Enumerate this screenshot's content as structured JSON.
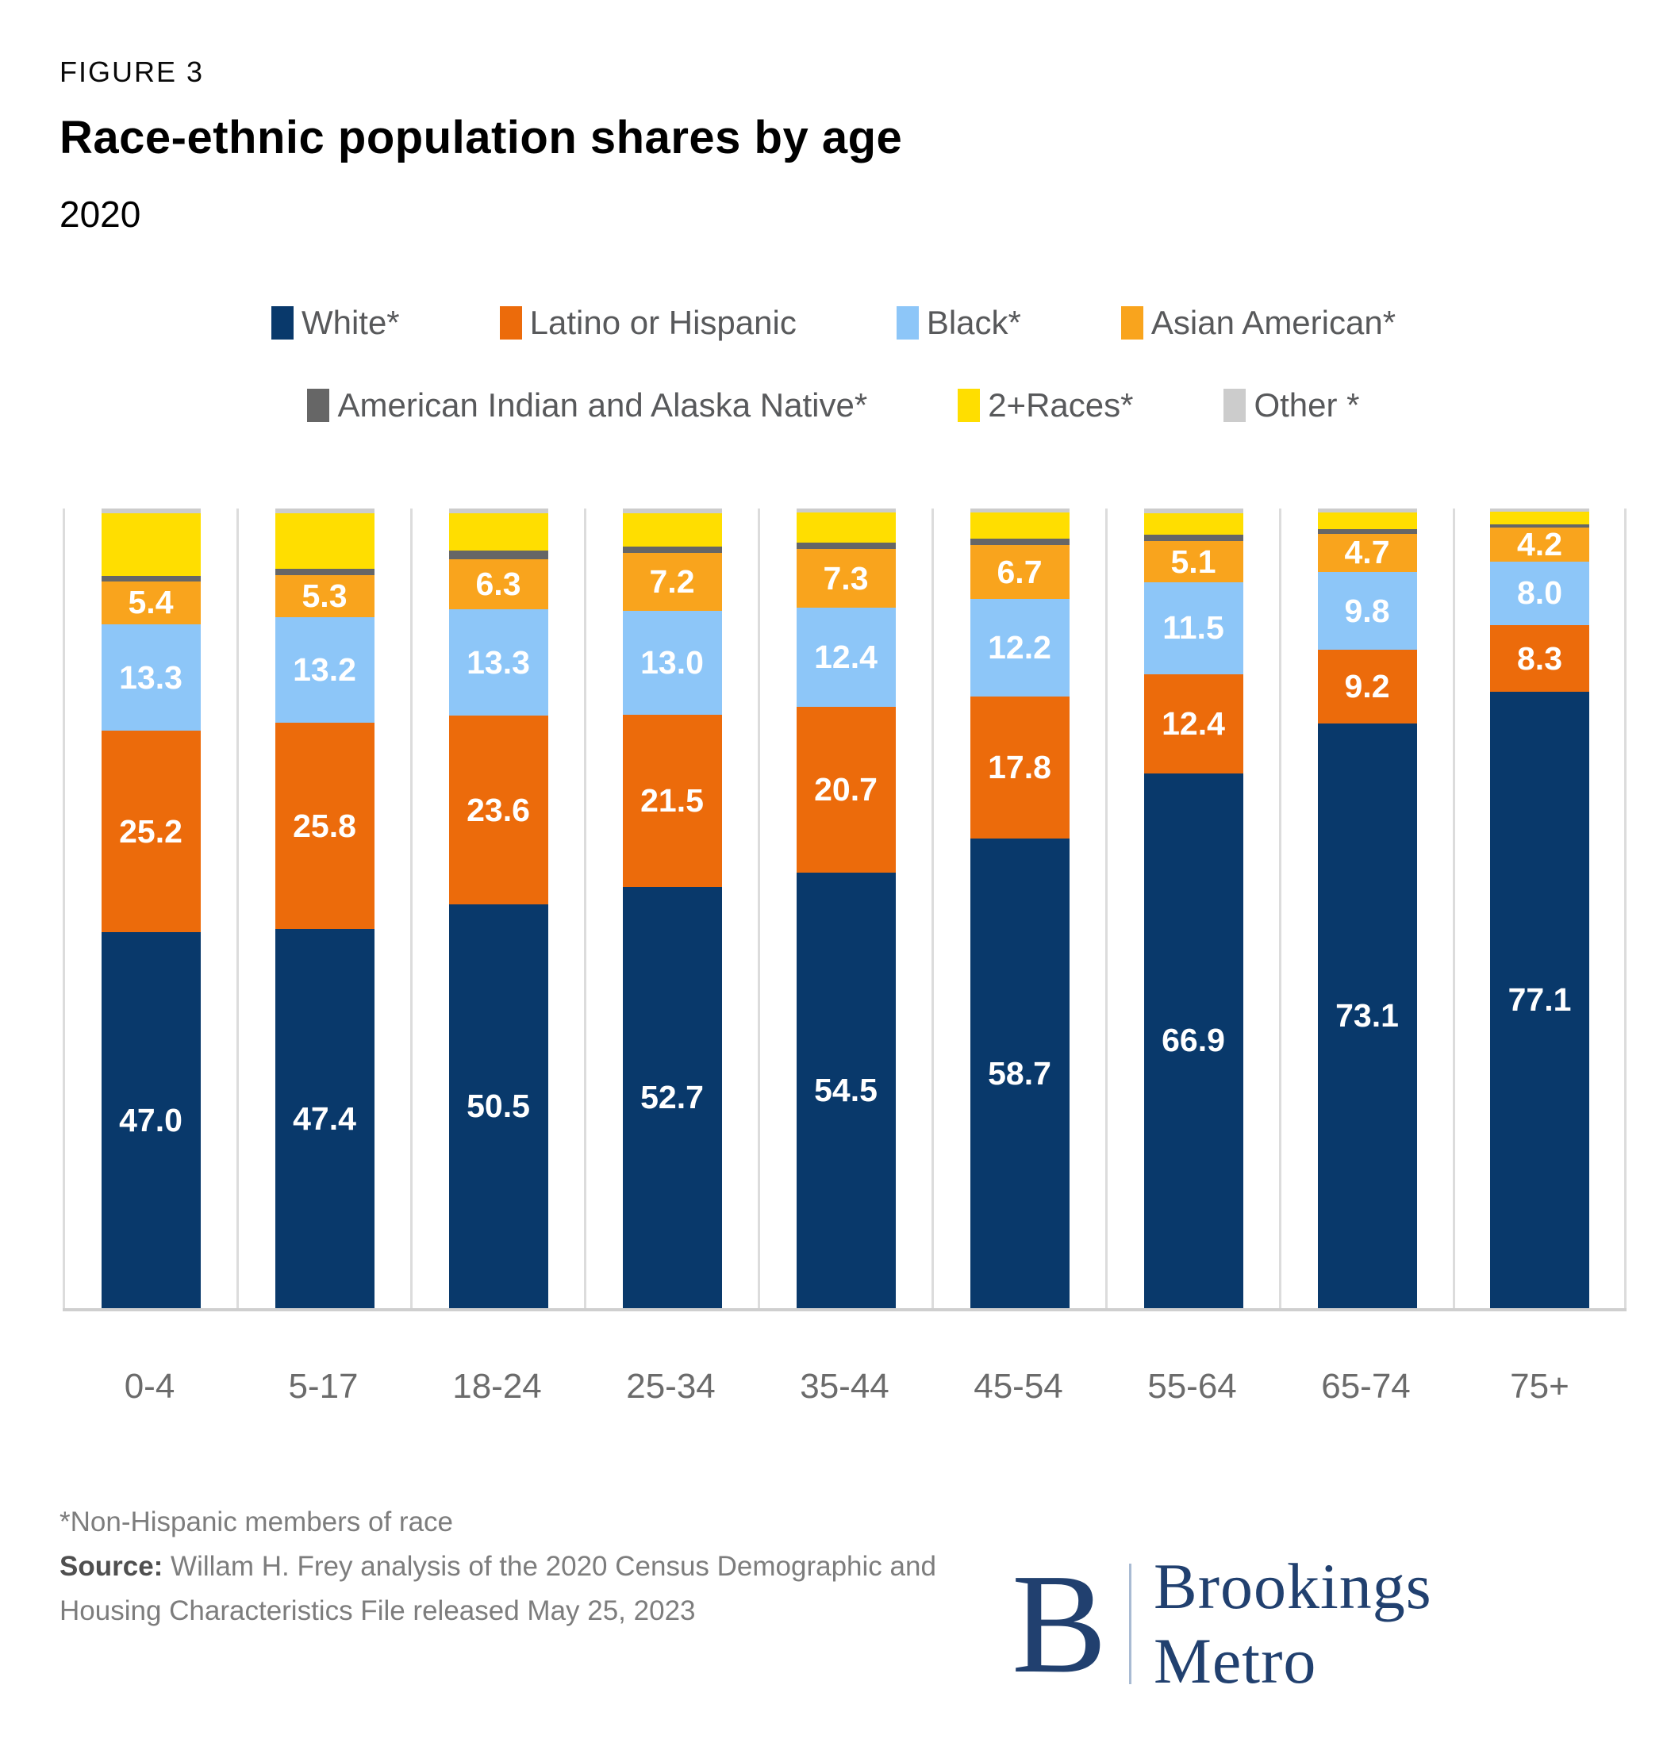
{
  "header": {
    "figure_label": "FIGURE 3",
    "title": "Race-ethnic population shares by age",
    "subtitle": "2020"
  },
  "chart_data": {
    "type": "bar",
    "stacked": true,
    "units": "percent share of age group",
    "ylim": [
      0,
      100
    ],
    "grid": "vertical band separators only",
    "legend_position": "top, two centered rows",
    "categories": [
      "0-4",
      "5-17",
      "18-24",
      "25-34",
      "35-44",
      "45-54",
      "55-64",
      "65-74",
      "75+"
    ],
    "series": [
      {
        "id": "white",
        "name": "White*",
        "color": "#09396b",
        "labels_shown": true,
        "values": [
          47.0,
          47.4,
          50.5,
          52.7,
          54.5,
          58.7,
          66.9,
          73.1,
          77.1
        ]
      },
      {
        "id": "latino-or-hispanic",
        "name": "Latino or Hispanic",
        "color": "#ec6b0b",
        "labels_shown": true,
        "values": [
          25.2,
          25.8,
          23.6,
          21.5,
          20.7,
          17.8,
          12.4,
          9.2,
          8.3
        ]
      },
      {
        "id": "black",
        "name": "Black*",
        "color": "#8dc6f8",
        "labels_shown": true,
        "values": [
          13.3,
          13.2,
          13.3,
          13.0,
          12.4,
          12.2,
          11.5,
          9.8,
          8.0
        ]
      },
      {
        "id": "asian-american",
        "name": "Asian American*",
        "color": "#f9a41d",
        "labels_shown": true,
        "values": [
          5.4,
          5.3,
          6.3,
          7.2,
          7.3,
          6.7,
          5.1,
          4.7,
          4.2
        ]
      },
      {
        "id": "american-indian-alaska-native",
        "name": "American Indian and Alaska Native*",
        "color": "#666666",
        "labels_shown": false,
        "values_estimated_from_pixels": true,
        "values": [
          0.7,
          0.8,
          1.0,
          0.8,
          0.8,
          0.8,
          0.8,
          0.6,
          0.4
        ]
      },
      {
        "id": "two-plus-races",
        "name": "2+Races*",
        "color": "#ffde00",
        "labels_shown": false,
        "values_estimated_from_pixels": true,
        "values": [
          7.8,
          6.9,
          4.7,
          4.2,
          3.8,
          3.3,
          2.7,
          2.1,
          1.6
        ]
      },
      {
        "id": "other",
        "name": "Other *",
        "color": "#cccccc",
        "labels_shown": false,
        "values_estimated_from_pixels": true,
        "values": [
          0.6,
          0.6,
          0.6,
          0.6,
          0.5,
          0.5,
          0.6,
          0.5,
          0.4
        ]
      }
    ]
  },
  "footer": {
    "footnote": "*Non-Hispanic members of race",
    "source_label": "Source:",
    "source_text": " Willam H. Frey analysis of the 2020 Census Demographic and Housing Characteristics File released May 25, 2023"
  },
  "brand": {
    "initial": "B",
    "name": "Brookings Metro"
  }
}
